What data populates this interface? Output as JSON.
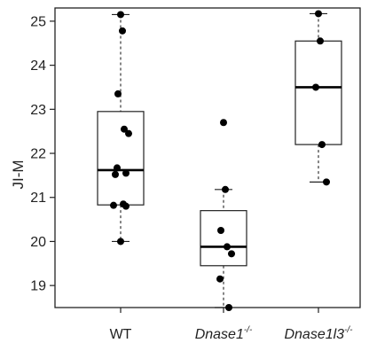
{
  "chart_data": {
    "type": "box",
    "ylabel": "JI-M",
    "xlabel": "",
    "ylim": [
      18.5,
      25.3
    ],
    "yticks": [
      "19",
      "20",
      "21",
      "22",
      "23",
      "24",
      "25"
    ],
    "categories": [
      {
        "name": "WT",
        "sup": "",
        "italic": false
      },
      {
        "name": "Dnase1",
        "sup": "-/-",
        "italic": true
      },
      {
        "name": "Dnase1l3",
        "sup": "-/-",
        "italic": true
      }
    ],
    "boxes": [
      {
        "category": "WT",
        "whisker_low": 20.0,
        "q1": 20.83,
        "median": 21.62,
        "q3": 22.95,
        "whisker_high": 25.15
      },
      {
        "category": "Dnase1-/-",
        "whisker_low": 18.5,
        "q1": 19.45,
        "median": 19.88,
        "q3": 20.7,
        "whisker_high": 21.18
      },
      {
        "category": "Dnase1l3-/-",
        "whisker_low": 21.35,
        "q1": 22.2,
        "median": 23.5,
        "q3": 24.55,
        "whisker_high": 25.17
      }
    ],
    "points": [
      {
        "category": "WT",
        "values": [
          25.15,
          24.78,
          23.35,
          22.55,
          22.45,
          21.67,
          21.55,
          21.52,
          20.85,
          20.82,
          20.8,
          20.0
        ]
      },
      {
        "category": "Dnase1-/-",
        "values": [
          22.7,
          21.18,
          20.25,
          19.88,
          19.72,
          19.15,
          18.5
        ]
      },
      {
        "category": "Dnase1l3-/-",
        "values": [
          25.17,
          24.55,
          23.5,
          22.2,
          21.35
        ]
      }
    ],
    "grid": false,
    "legend": "none"
  }
}
